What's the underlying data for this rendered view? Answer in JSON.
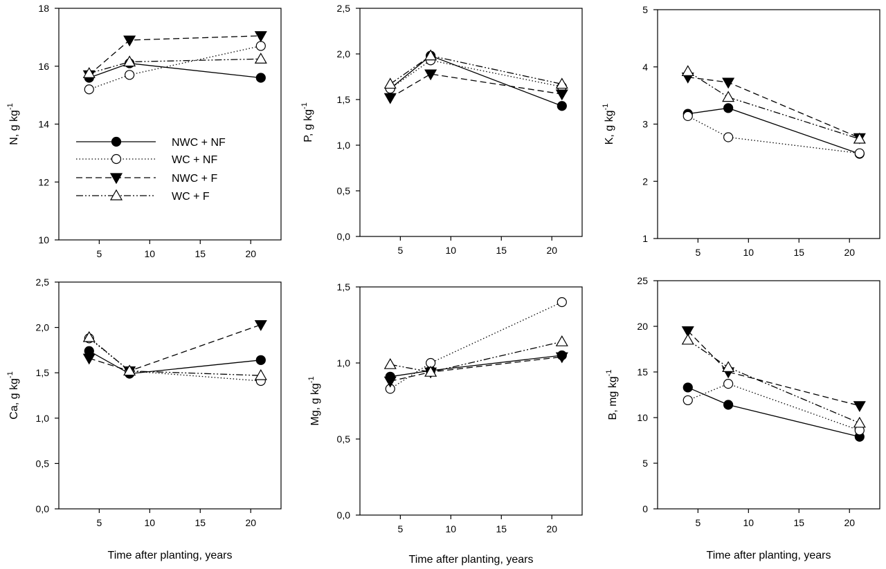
{
  "figure": {
    "series_styles": [
      {
        "name": "NWC + NF",
        "marker": "circle",
        "filled": true,
        "dash": ""
      },
      {
        "name": "WC + NF",
        "marker": "circle",
        "filled": false,
        "dash": "1.5,3"
      },
      {
        "name": "NWC + F",
        "marker": "triangle-down",
        "filled": true,
        "dash": "9,5"
      },
      {
        "name": "WC + F",
        "marker": "triangle-up",
        "filled": false,
        "dash": "10,3,2,3,2,3"
      }
    ]
  },
  "chart_data": [
    {
      "type": "line",
      "ylabel": "N, g kg",
      "ylabel_sup": "-1",
      "xlabel": "",
      "xlim": [
        1,
        23
      ],
      "ylim": [
        10,
        18
      ],
      "xticks": [
        5,
        10,
        15,
        20
      ],
      "xtick_labels": [
        "5",
        "10",
        "15",
        "20"
      ],
      "yticks": [
        10,
        12,
        14,
        16,
        18
      ],
      "ytick_labels": [
        "10",
        "12",
        "14",
        "16",
        "18"
      ],
      "x": [
        4,
        8,
        21
      ],
      "legend": true,
      "legend_position": "lower-left",
      "series": [
        {
          "name": "NWC + NF",
          "values": [
            15.6,
            16.1,
            15.6
          ]
        },
        {
          "name": "WC + NF",
          "values": [
            15.2,
            15.7,
            16.7
          ]
        },
        {
          "name": "NWC + F",
          "values": [
            15.7,
            16.9,
            17.05
          ]
        },
        {
          "name": "WC + F",
          "values": [
            15.75,
            16.15,
            16.25
          ]
        }
      ]
    },
    {
      "type": "line",
      "ylabel": "P, g kg",
      "ylabel_sup": "-1",
      "xlabel": "",
      "xlim": [
        1,
        23
      ],
      "ylim": [
        0,
        2.5
      ],
      "xticks": [
        5,
        10,
        15,
        20
      ],
      "xtick_labels": [
        "5",
        "10",
        "15",
        "20"
      ],
      "yticks": [
        0,
        0.5,
        1.0,
        1.5,
        2.0,
        2.5
      ],
      "ytick_labels": [
        "0,0",
        "0,5",
        "1,0",
        "1,5",
        "2,0",
        "2,5"
      ],
      "x": [
        4,
        8,
        21
      ],
      "legend": false,
      "series": [
        {
          "name": "NWC + NF",
          "values": [
            1.62,
            1.98,
            1.43
          ]
        },
        {
          "name": "WC + NF",
          "values": [
            1.62,
            1.93,
            1.64
          ]
        },
        {
          "name": "NWC + F",
          "values": [
            1.52,
            1.78,
            1.56
          ]
        },
        {
          "name": "WC + F",
          "values": [
            1.67,
            1.98,
            1.67
          ]
        }
      ]
    },
    {
      "type": "line",
      "ylabel": "K, g kg",
      "ylabel_sup": "-1",
      "xlabel": "",
      "xlim": [
        1,
        23
      ],
      "ylim": [
        1,
        5
      ],
      "xticks": [
        5,
        10,
        15,
        20
      ],
      "xtick_labels": [
        "5",
        "10",
        "15",
        "20"
      ],
      "yticks": [
        1,
        2,
        3,
        4,
        5
      ],
      "ytick_labels": [
        "1",
        "2",
        "3",
        "4",
        "5"
      ],
      "x": [
        4,
        8,
        21
      ],
      "legend": false,
      "series": [
        {
          "name": "NWC + NF",
          "values": [
            3.18,
            3.28,
            2.48
          ]
        },
        {
          "name": "WC + NF",
          "values": [
            3.14,
            2.77,
            2.49
          ]
        },
        {
          "name": "NWC + F",
          "values": [
            3.82,
            3.73,
            2.76
          ]
        },
        {
          "name": "WC + F",
          "values": [
            3.92,
            3.47,
            2.74
          ]
        }
      ]
    },
    {
      "type": "line",
      "ylabel": "Ca, g kg",
      "ylabel_sup": "-1",
      "xlabel": "Time after planting, years",
      "xlim": [
        1,
        23
      ],
      "ylim": [
        0,
        2.5
      ],
      "xticks": [
        5,
        10,
        15,
        20
      ],
      "xtick_labels": [
        "5",
        "10",
        "15",
        "20"
      ],
      "yticks": [
        0,
        0.5,
        1.0,
        1.5,
        2.0,
        2.5
      ],
      "ytick_labels": [
        "0,0",
        "0,5",
        "1,0",
        "1,5",
        "2,0",
        "2,5"
      ],
      "x": [
        4,
        8,
        21
      ],
      "legend": false,
      "series": [
        {
          "name": "NWC + NF",
          "values": [
            1.74,
            1.49,
            1.64
          ]
        },
        {
          "name": "WC + NF",
          "values": [
            1.88,
            1.52,
            1.41
          ]
        },
        {
          "name": "NWC + F",
          "values": [
            1.66,
            1.52,
            2.03
          ]
        },
        {
          "name": "WC + F",
          "values": [
            1.89,
            1.52,
            1.47
          ]
        }
      ]
    },
    {
      "type": "line",
      "ylabel": "Mg, g kg",
      "ylabel_sup": "-1",
      "xlabel": "Time after planting, years",
      "xlim": [
        1,
        23
      ],
      "ylim": [
        0,
        1.5
      ],
      "xticks": [
        5,
        10,
        15,
        20
      ],
      "xtick_labels": [
        "5",
        "10",
        "15",
        "20"
      ],
      "yticks": [
        0,
        0.5,
        1.0,
        1.5
      ],
      "ytick_labels": [
        "0,0",
        "0,5",
        "1,0",
        "1,5"
      ],
      "x": [
        4,
        8,
        21
      ],
      "legend": false,
      "series": [
        {
          "name": "NWC + NF",
          "values": [
            0.91,
            0.95,
            1.05
          ]
        },
        {
          "name": "WC + NF",
          "values": [
            0.83,
            1.0,
            1.4
          ]
        },
        {
          "name": "NWC + F",
          "values": [
            0.88,
            0.94,
            1.04
          ]
        },
        {
          "name": "WC + F",
          "values": [
            0.99,
            0.94,
            1.14
          ]
        }
      ]
    },
    {
      "type": "line",
      "ylabel": "B, mg kg",
      "ylabel_sup": "-1",
      "xlabel": "Time after planting, years",
      "xlim": [
        1,
        23
      ],
      "ylim": [
        0,
        25
      ],
      "xticks": [
        5,
        10,
        15,
        20
      ],
      "xtick_labels": [
        "5",
        "10",
        "15",
        "20"
      ],
      "yticks": [
        0,
        5,
        10,
        15,
        20,
        25
      ],
      "ytick_labels": [
        "0",
        "5",
        "10",
        "15",
        "20",
        "25"
      ],
      "x": [
        4,
        8,
        21
      ],
      "legend": false,
      "series": [
        {
          "name": "NWC + NF",
          "values": [
            13.3,
            11.4,
            7.9
          ]
        },
        {
          "name": "WC + NF",
          "values": [
            11.9,
            13.7,
            8.6
          ]
        },
        {
          "name": "NWC + F",
          "values": [
            19.5,
            15.0,
            11.3
          ]
        },
        {
          "name": "WC + F",
          "values": [
            18.5,
            15.5,
            9.4
          ]
        }
      ]
    }
  ]
}
